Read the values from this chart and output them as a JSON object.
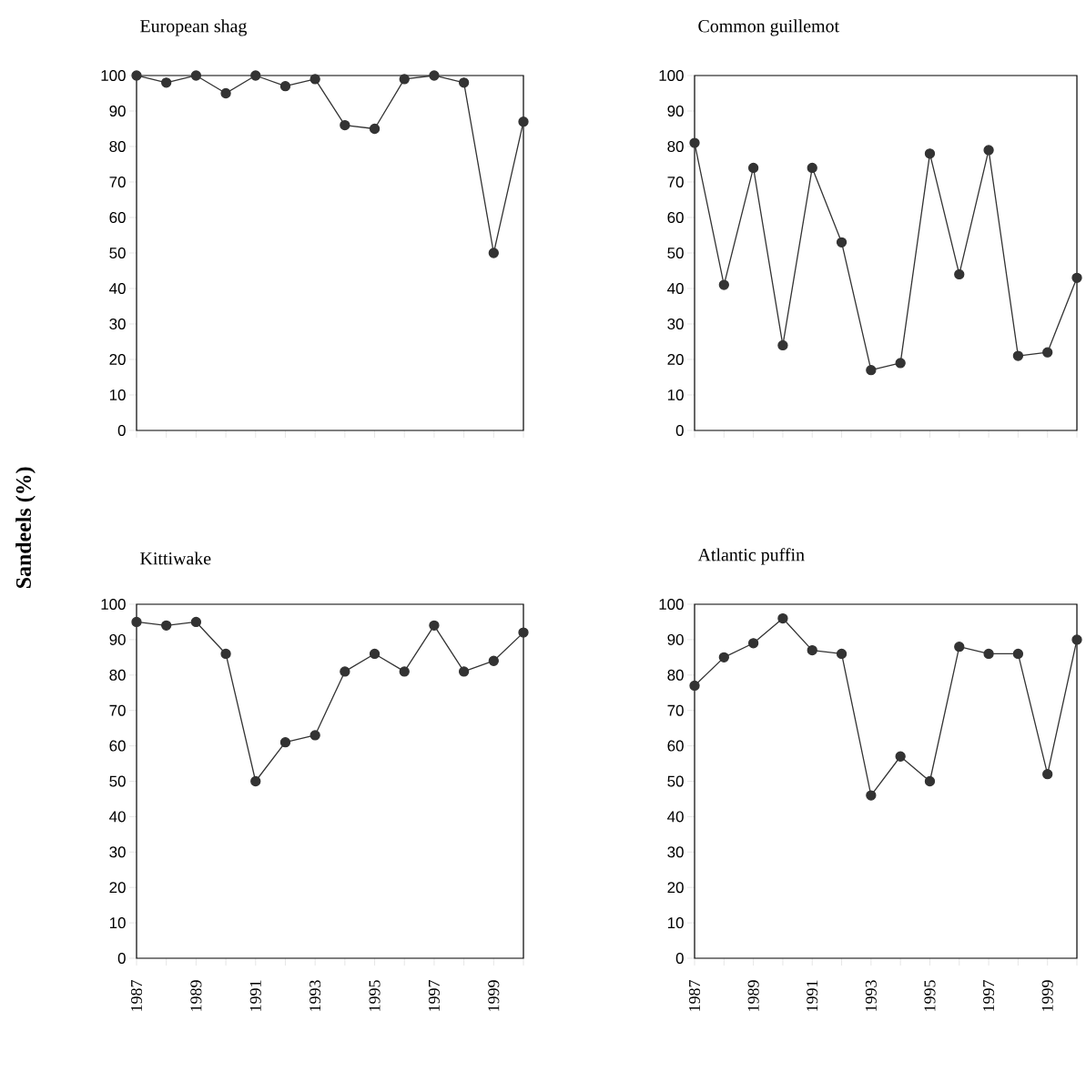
{
  "chart_data": [
    {
      "type": "line",
      "title": "European shag",
      "ylabel": "Sandeels (%)",
      "x": [
        1987,
        1988,
        1989,
        1990,
        1991,
        1992,
        1993,
        1994,
        1995,
        1996,
        1997,
        1998,
        1999,
        2000
      ],
      "values": [
        100,
        98,
        100,
        95,
        100,
        97,
        99,
        86,
        85,
        99,
        100,
        98,
        50,
        87
      ],
      "color": "#333333",
      "marker": "circle",
      "xlim": [
        1987,
        2000
      ],
      "xticks": [
        1987,
        {
          "value": 1988,
          "label": null
        },
        1989,
        {
          "value": 1990,
          "label": null
        },
        1991,
        {
          "value": 1992,
          "label": null
        },
        1993,
        {
          "value": 1994,
          "label": null
        },
        1995,
        {
          "value": 1996,
          "label": null
        },
        1997,
        {
          "value": 1998,
          "label": null
        },
        1999,
        {
          "value": 2000,
          "label": null
        }
      ],
      "ylim": [
        0,
        100
      ],
      "yticks": [
        0,
        10,
        20,
        30,
        40,
        50,
        60,
        70,
        80,
        90,
        100
      ],
      "tick_labels": "y"
    },
    {
      "type": "line",
      "title": "Common guillemot",
      "x": [
        1987,
        1988,
        1989,
        1990,
        1991,
        1992,
        1993,
        1994,
        1995,
        1996,
        1997,
        1998,
        1999,
        2000
      ],
      "values": [
        81,
        41,
        74,
        24,
        74,
        53,
        17,
        19,
        78,
        44,
        79,
        21,
        22,
        43
      ],
      "color": "#333333",
      "marker": "circle",
      "xlim": [
        1987,
        2000
      ],
      "xticks": [
        1987,
        {
          "value": 1988,
          "label": null
        },
        1989,
        {
          "value": 1990,
          "label": null
        },
        1991,
        {
          "value": 1992,
          "label": null
        },
        1993,
        {
          "value": 1994,
          "label": null
        },
        1995,
        {
          "value": 1996,
          "label": null
        },
        1997,
        {
          "value": 1998,
          "label": null
        },
        1999,
        {
          "value": 2000,
          "label": null
        }
      ],
      "ylim": [
        0,
        100
      ],
      "yticks": [
        0,
        10,
        20,
        30,
        40,
        50,
        60,
        70,
        80,
        90,
        100
      ],
      "tick_labels": "y"
    },
    {
      "type": "line",
      "title": "Kittiwake",
      "x": [
        1987,
        1988,
        1989,
        1990,
        1991,
        1992,
        1993,
        1994,
        1995,
        1996,
        1997,
        1998,
        1999,
        2000
      ],
      "values": [
        95,
        94,
        95,
        86,
        50,
        61,
        63,
        81,
        86,
        81,
        94,
        81,
        84,
        92
      ],
      "color": "#333333",
      "marker": "circle",
      "xlim": [
        1987,
        2000
      ],
      "xticks": [
        1987,
        {
          "value": 1988,
          "label": null
        },
        1989,
        {
          "value": 1990,
          "label": null
        },
        1991,
        {
          "value": 1992,
          "label": null
        },
        1993,
        {
          "value": 1994,
          "label": null
        },
        1995,
        {
          "value": 1996,
          "label": null
        },
        1997,
        {
          "value": 1998,
          "label": null
        },
        1999,
        {
          "value": 2000,
          "label": null
        }
      ],
      "ylim": [
        0,
        100
      ],
      "yticks": [
        0,
        10,
        20,
        30,
        40,
        50,
        60,
        70,
        80,
        90,
        100
      ]
    },
    {
      "type": "line",
      "title": "Atlantic puffin",
      "x": [
        1987,
        1988,
        1989,
        1990,
        1991,
        1992,
        1993,
        1994,
        1995,
        1996,
        1997,
        1998,
        1999,
        2000
      ],
      "values": [
        77,
        85,
        89,
        96,
        87,
        86,
        46,
        57,
        50,
        88,
        86,
        86,
        52,
        90
      ],
      "color": "#333333",
      "marker": "circle",
      "xlim": [
        1987,
        2000
      ],
      "xticks": [
        1987,
        {
          "value": 1988,
          "label": null
        },
        1989,
        {
          "value": 1990,
          "label": null
        },
        1991,
        {
          "value": 1992,
          "label": null
        },
        1993,
        {
          "value": 1994,
          "label": null
        },
        1995,
        {
          "value": 1996,
          "label": null
        },
        1997,
        {
          "value": 1998,
          "label": null
        },
        1999,
        {
          "value": 2000,
          "label": null
        }
      ],
      "ylim": [
        0,
        100
      ],
      "yticks": [
        0,
        10,
        20,
        30,
        40,
        50,
        60,
        70,
        80,
        90,
        100
      ]
    }
  ]
}
